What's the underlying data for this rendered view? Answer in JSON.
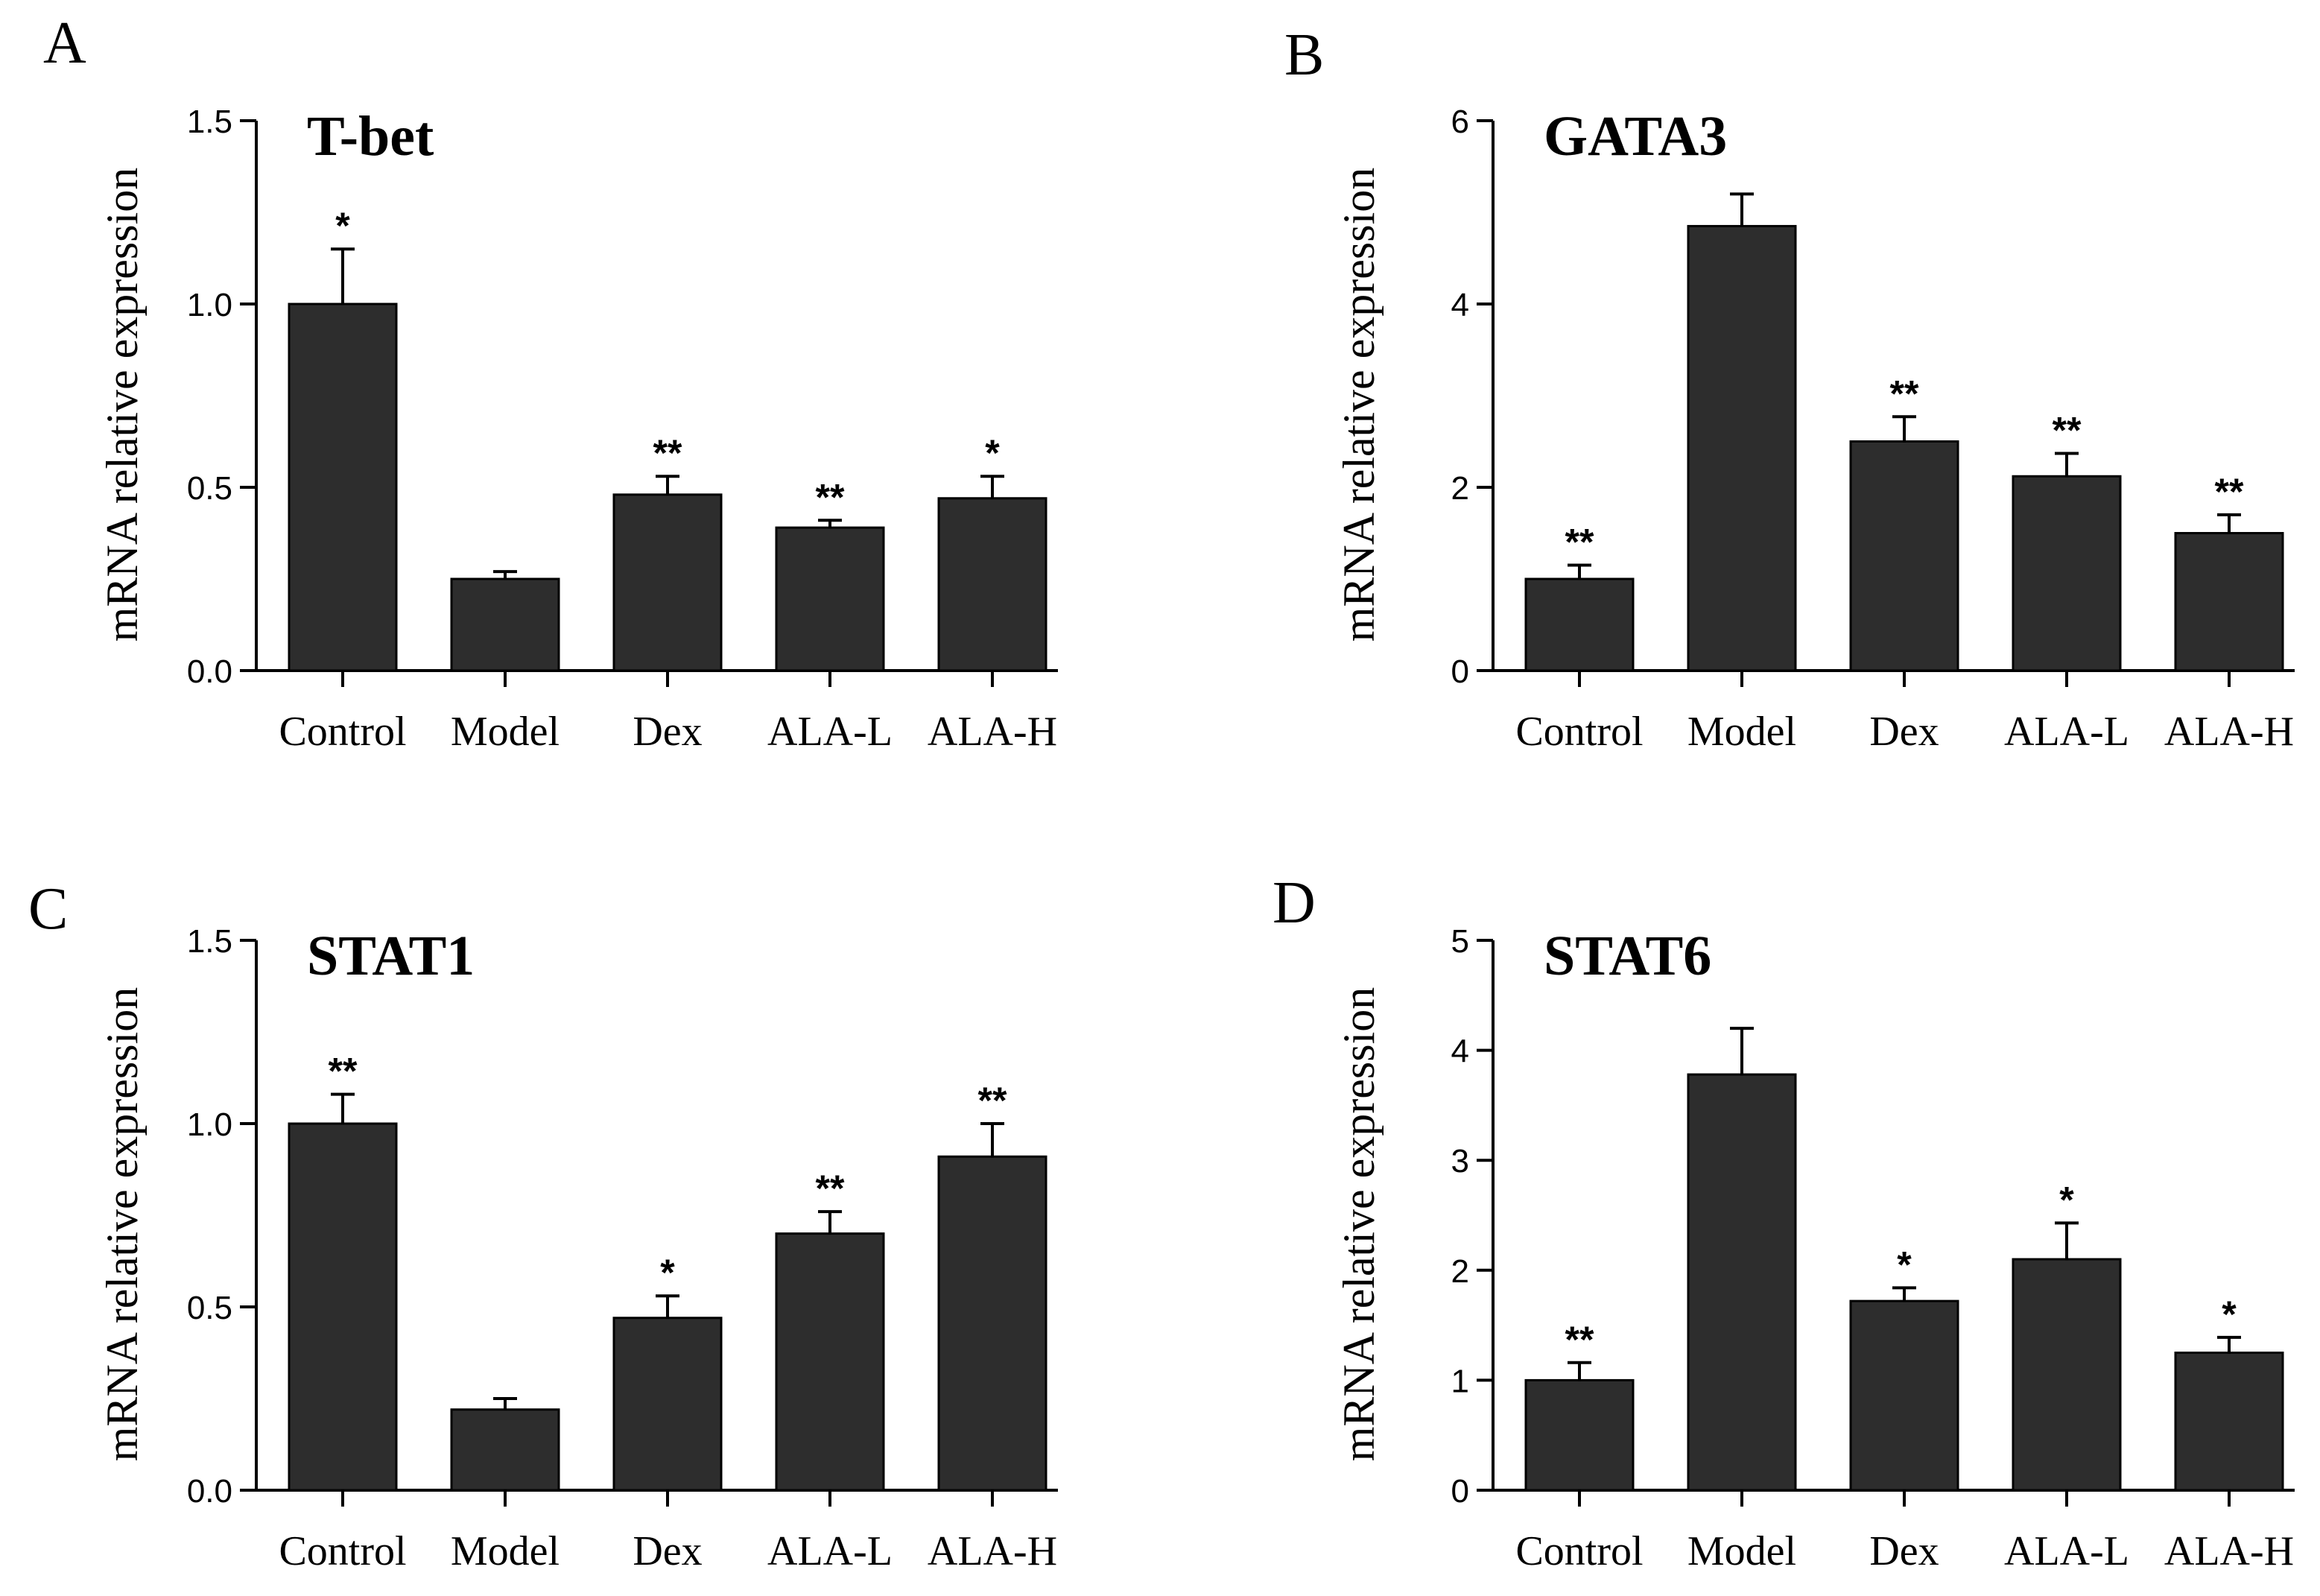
{
  "chart_data": [
    {
      "type": "bar",
      "panel": "A",
      "title": "T-bet",
      "xlabel": "",
      "ylabel": "mRNA relative expression",
      "ylim": [
        0,
        1.5
      ],
      "yticks": [
        "0.0",
        "0.5",
        "1.0",
        "1.5"
      ],
      "ytick_values": [
        0,
        0.5,
        1.0,
        1.5
      ],
      "categories": [
        "Control",
        "Model",
        "Dex",
        "ALA-L",
        "ALA-H"
      ],
      "values": [
        1.0,
        0.25,
        0.48,
        0.39,
        0.47
      ],
      "errors": [
        0.15,
        0.02,
        0.05,
        0.02,
        0.06
      ],
      "significance": [
        "*",
        "",
        "**",
        "**",
        "*"
      ],
      "bar_color": "#2d2d2d"
    },
    {
      "type": "bar",
      "panel": "B",
      "title": "GATA3",
      "xlabel": "",
      "ylabel": "mRNA relative expression",
      "ylim": [
        0,
        6
      ],
      "yticks": [
        "0",
        "2",
        "4",
        "6"
      ],
      "ytick_values": [
        0,
        2,
        4,
        6
      ],
      "categories": [
        "Control",
        "Model",
        "Dex",
        "ALA-L",
        "ALA-H"
      ],
      "values": [
        1.0,
        4.85,
        2.5,
        2.12,
        1.5
      ],
      "errors": [
        0.15,
        0.35,
        0.27,
        0.25,
        0.2
      ],
      "significance": [
        "**",
        "",
        "**",
        "**",
        "**"
      ],
      "bar_color": "#2d2d2d"
    },
    {
      "type": "bar",
      "panel": "C",
      "title": "STAT1",
      "xlabel": "",
      "ylabel": "mRNA relative expression",
      "ylim": [
        0,
        1.5
      ],
      "yticks": [
        "0.0",
        "0.5",
        "1.0",
        "1.5"
      ],
      "ytick_values": [
        0,
        0.5,
        1.0,
        1.5
      ],
      "categories": [
        "Control",
        "Model",
        "Dex",
        "ALA-L",
        "ALA-H"
      ],
      "values": [
        1.0,
        0.22,
        0.47,
        0.7,
        0.91
      ],
      "errors": [
        0.08,
        0.03,
        0.06,
        0.06,
        0.09
      ],
      "significance": [
        "**",
        "",
        "*",
        "**",
        "**"
      ],
      "bar_color": "#2d2d2d"
    },
    {
      "type": "bar",
      "panel": "D",
      "title": "STAT6",
      "xlabel": "",
      "ylabel": "mRNA relative expression",
      "ylim": [
        0,
        5
      ],
      "yticks": [
        "0",
        "1",
        "2",
        "3",
        "4",
        "5"
      ],
      "ytick_values": [
        0,
        1,
        2,
        3,
        4,
        5
      ],
      "categories": [
        "Control",
        "Model",
        "Dex",
        "ALA-L",
        "ALA-H"
      ],
      "values": [
        1.0,
        3.78,
        1.72,
        2.1,
        1.25
      ],
      "errors": [
        0.16,
        0.42,
        0.12,
        0.33,
        0.14
      ],
      "significance": [
        "**",
        "",
        "*",
        "*",
        "*"
      ],
      "bar_color": "#2d2d2d"
    }
  ]
}
